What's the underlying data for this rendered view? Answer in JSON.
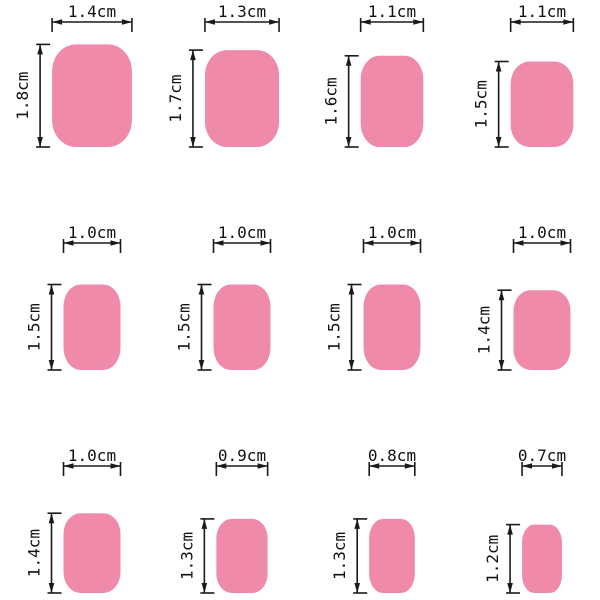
{
  "diagram": {
    "unit": "cm",
    "shape_fill": "#EF8BA9",
    "line_color": "#1A1A1A",
    "text_color": "#111111",
    "rows": [
      [
        {
          "width_cm": 1.4,
          "height_cm": 1.8,
          "width_label": "1.4cm",
          "height_label": "1.8cm"
        },
        {
          "width_cm": 1.3,
          "height_cm": 1.7,
          "width_label": "1.3cm",
          "height_label": "1.7cm"
        },
        {
          "width_cm": 1.1,
          "height_cm": 1.6,
          "width_label": "1.1cm",
          "height_label": "1.6cm"
        },
        {
          "width_cm": 1.1,
          "height_cm": 1.5,
          "width_label": "1.1cm",
          "height_label": "1.5cm"
        }
      ],
      [
        {
          "width_cm": 1.0,
          "height_cm": 1.5,
          "width_label": "1.0cm",
          "height_label": "1.5cm"
        },
        {
          "width_cm": 1.0,
          "height_cm": 1.5,
          "width_label": "1.0cm",
          "height_label": "1.5cm"
        },
        {
          "width_cm": 1.0,
          "height_cm": 1.5,
          "width_label": "1.0cm",
          "height_label": "1.5cm"
        },
        {
          "width_cm": 1.0,
          "height_cm": 1.4,
          "width_label": "1.0cm",
          "height_label": "1.4cm"
        }
      ],
      [
        {
          "width_cm": 1.0,
          "height_cm": 1.4,
          "width_label": "1.0cm",
          "height_label": "1.4cm"
        },
        {
          "width_cm": 0.9,
          "height_cm": 1.3,
          "width_label": "0.9cm",
          "height_label": "1.3cm"
        },
        {
          "width_cm": 0.8,
          "height_cm": 1.3,
          "width_label": "0.8cm",
          "height_label": "1.3cm"
        },
        {
          "width_cm": 0.7,
          "height_cm": 1.2,
          "width_label": "0.7cm",
          "height_label": "1.2cm"
        }
      ]
    ]
  }
}
